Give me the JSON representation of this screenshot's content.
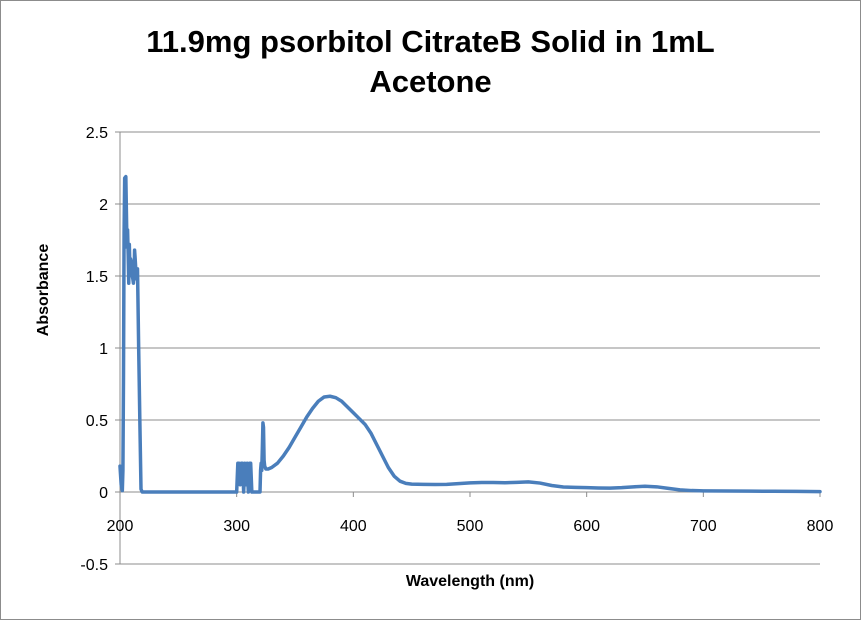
{
  "chart_data": {
    "type": "line",
    "title_lines": [
      "11.9mg psorbitol CitrateB Solid in 1mL",
      "Acetone"
    ],
    "xlabel": "Wavelength (nm)",
    "ylabel": "Absorbance",
    "xlim": [
      200,
      800
    ],
    "ylim": [
      -0.5,
      2.5
    ],
    "x_ticks": [
      200,
      300,
      400,
      500,
      600,
      700,
      800
    ],
    "y_ticks": [
      -0.5,
      0,
      0.5,
      1,
      1.5,
      2,
      2.5
    ],
    "grid": "horizontal",
    "line_color": "#4a7ebb",
    "series": [
      {
        "x": [
          200,
          201,
          202,
          202.5,
          203,
          203.5,
          204,
          205,
          206,
          206.5,
          207,
          207.5,
          208,
          208.5,
          209,
          209.5,
          210,
          210.5,
          211,
          211.5,
          212,
          212.5,
          213,
          213.5,
          214,
          214.5,
          215,
          216,
          217,
          218,
          219,
          220,
          230,
          250,
          280,
          299,
          300,
          301,
          302,
          303,
          304,
          305,
          306,
          307,
          308,
          309,
          310,
          311,
          312,
          313,
          314,
          315,
          316,
          317,
          318,
          319,
          320,
          320.5,
          321,
          321.5,
          322,
          322.5,
          323,
          323.5,
          324,
          325,
          327,
          330,
          335,
          340,
          345,
          350,
          355,
          360,
          365,
          370,
          375,
          380,
          385,
          390,
          395,
          400,
          405,
          410,
          415,
          420,
          425,
          430,
          435,
          440,
          445,
          450,
          460,
          470,
          480,
          490,
          500,
          510,
          520,
          530,
          540,
          550,
          560,
          570,
          580,
          590,
          600,
          610,
          620,
          630,
          640,
          650,
          660,
          670,
          680,
          690,
          700,
          720,
          740,
          760,
          780,
          800
        ],
        "y": [
          0.18,
          0.05,
          0.01,
          0.15,
          0.8,
          1.8,
          2.18,
          2.19,
          1.7,
          1.82,
          1.65,
          1.45,
          1.72,
          1.55,
          1.62,
          1.6,
          1.55,
          1.5,
          1.48,
          1.45,
          1.5,
          1.68,
          1.62,
          1.55,
          1.48,
          1.52,
          1.55,
          1.0,
          0.5,
          0.02,
          0.0,
          0.0,
          0.0,
          0.0,
          0.0,
          0.0,
          0.0,
          0.2,
          0.2,
          0.05,
          0.2,
          0.2,
          0.0,
          0.2,
          0.05,
          0.2,
          0.0,
          0.2,
          0.2,
          0.0,
          0.0,
          0.0,
          0.0,
          0.0,
          0.0,
          0.0,
          0.0,
          0.15,
          0.2,
          0.15,
          0.3,
          0.48,
          0.45,
          0.22,
          0.18,
          0.16,
          0.16,
          0.17,
          0.2,
          0.25,
          0.31,
          0.38,
          0.45,
          0.52,
          0.58,
          0.63,
          0.66,
          0.665,
          0.655,
          0.63,
          0.59,
          0.55,
          0.51,
          0.47,
          0.41,
          0.33,
          0.25,
          0.17,
          0.11,
          0.075,
          0.06,
          0.055,
          0.053,
          0.052,
          0.053,
          0.058,
          0.063,
          0.066,
          0.066,
          0.064,
          0.067,
          0.07,
          0.062,
          0.045,
          0.035,
          0.032,
          0.03,
          0.028,
          0.027,
          0.03,
          0.036,
          0.04,
          0.036,
          0.025,
          0.015,
          0.01,
          0.008,
          0.007,
          0.006,
          0.005,
          0.004,
          0.003
        ]
      }
    ]
  }
}
